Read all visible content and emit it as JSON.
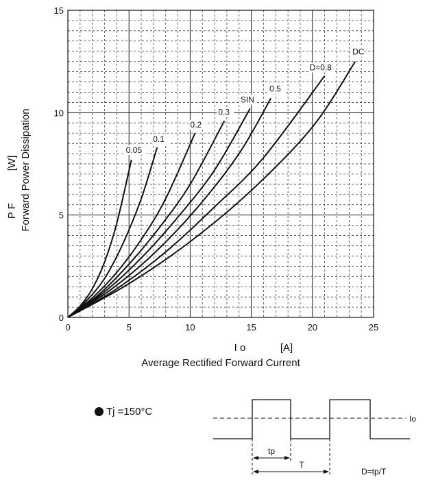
{
  "chart_data": {
    "type": "line",
    "ylabel_symbol": "P F",
    "ylabel_unit": "[W]",
    "ylabel": "Forward Power Dissipation",
    "xlabel_symbol": "I o",
    "xlabel_unit": "[A]",
    "xlabel": "Average Rectified Forward Current",
    "xlim": [
      0,
      25
    ],
    "ylim": [
      0,
      15
    ],
    "xticks": [
      "0",
      "5",
      "10",
      "15",
      "20",
      "25"
    ],
    "yticks": [
      "0",
      "5",
      "10",
      "15"
    ],
    "grid": true,
    "series": [
      {
        "name": "0.05",
        "x": [
          0,
          1,
          2,
          3,
          4,
          5.2
        ],
        "y": [
          0,
          0.55,
          1.4,
          2.7,
          4.6,
          7.7
        ]
      },
      {
        "name": "0.1",
        "x": [
          0,
          1.5,
          3,
          4.5,
          6,
          7.3
        ],
        "y": [
          0,
          0.8,
          1.9,
          3.6,
          5.8,
          8.3
        ]
      },
      {
        "name": "0.2",
        "x": [
          0,
          2,
          4,
          6,
          8,
          10.4
        ],
        "y": [
          0,
          0.95,
          2.2,
          3.8,
          5.8,
          9.0
        ]
      },
      {
        "name": "0.3",
        "x": [
          0,
          2.5,
          5,
          7.5,
          10,
          12.8
        ],
        "y": [
          0,
          1.1,
          2.6,
          4.4,
          6.5,
          9.6
        ]
      },
      {
        "name": "SIN",
        "x": [
          0,
          3,
          6,
          9,
          12,
          14.9
        ],
        "y": [
          0,
          1.25,
          2.9,
          4.9,
          7.2,
          10.2
        ]
      },
      {
        "name": "0.5",
        "x": [
          0,
          3.5,
          7,
          10.5,
          14,
          16.6
        ],
        "y": [
          0,
          1.35,
          3.1,
          5.3,
          8.0,
          10.7
        ]
      },
      {
        "name": "D=0.8",
        "x": [
          0,
          4,
          8,
          12,
          16,
          21.0
        ],
        "y": [
          0,
          1.4,
          3.2,
          5.4,
          7.8,
          11.8
        ]
      },
      {
        "name": "DC",
        "x": [
          0,
          5,
          10,
          15,
          20,
          23.5
        ],
        "y": [
          0,
          1.65,
          3.7,
          6.2,
          9.3,
          12.5
        ]
      }
    ]
  },
  "condition": {
    "label": "Tj =150°C"
  },
  "waveform": {
    "io_label": "Io",
    "tp_label": "tp",
    "t_label": "T",
    "duty_formula": "D=tp/T"
  }
}
